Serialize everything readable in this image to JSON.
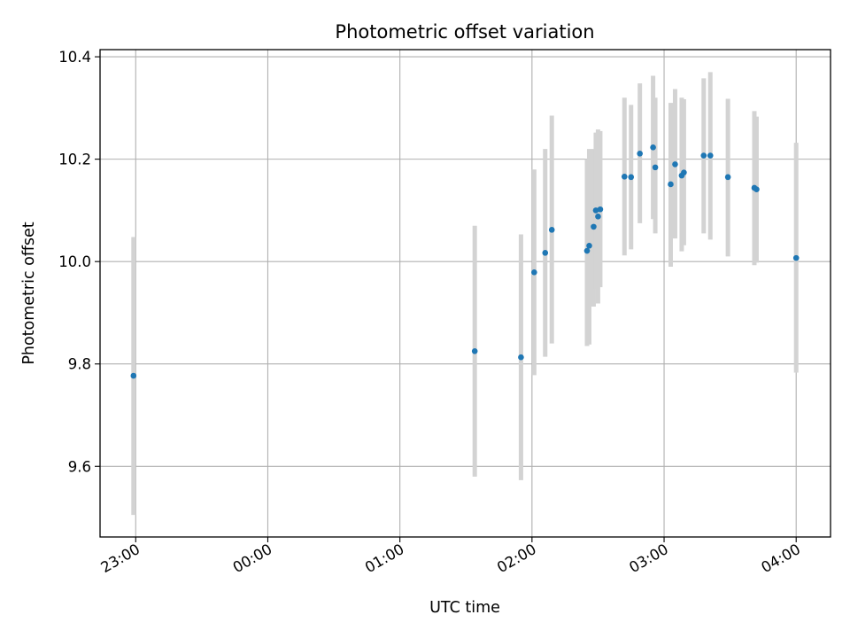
{
  "chart_data": {
    "type": "scatter",
    "title": "Photometric offset variation",
    "xlabel": "UTC time",
    "ylabel": "Photometric offset",
    "x_tick_labels": [
      "23:00",
      "00:00",
      "01:00",
      "02:00",
      "03:00",
      "04:00"
    ],
    "x_ticks_hours": [
      -1,
      0,
      1,
      2,
      3,
      4
    ],
    "x_range_hours": [
      -1.27,
      4.26
    ],
    "y_ticks": [
      9.6,
      9.8,
      10.0,
      10.2,
      10.4
    ],
    "y_tick_labels": [
      "9.6",
      "9.8",
      "10.0",
      "10.2",
      "10.4"
    ],
    "ylim": [
      9.462,
      10.414
    ],
    "grid": true,
    "point_color": "#1f77b4",
    "errorbar_color": "#d3d3d3",
    "points": [
      {
        "t": "22:59",
        "y": 9.777,
        "lo": 9.505,
        "hi": 10.048
      },
      {
        "t": "01:34",
        "y": 9.825,
        "lo": 9.58,
        "hi": 10.07
      },
      {
        "t": "01:55",
        "y": 9.813,
        "lo": 9.573,
        "hi": 10.053
      },
      {
        "t": "02:01",
        "y": 9.979,
        "lo": 9.778,
        "hi": 10.18
      },
      {
        "t": "02:06",
        "y": 10.017,
        "lo": 9.814,
        "hi": 10.22
      },
      {
        "t": "02:09",
        "y": 10.062,
        "lo": 9.84,
        "hi": 10.285
      },
      {
        "t": "02:25",
        "y": 10.021,
        "lo": 9.835,
        "hi": 10.2
      },
      {
        "t": "02:26",
        "y": 10.031,
        "lo": 9.838,
        "hi": 10.22
      },
      {
        "t": "02:28",
        "y": 10.068,
        "lo": 9.912,
        "hi": 10.22
      },
      {
        "t": "02:29",
        "y": 10.1,
        "lo": 9.946,
        "hi": 10.252
      },
      {
        "t": "02:30",
        "y": 10.088,
        "lo": 9.918,
        "hi": 10.258
      },
      {
        "t": "02:31",
        "y": 10.102,
        "lo": 9.95,
        "hi": 10.255
      },
      {
        "t": "02:42",
        "y": 10.166,
        "lo": 10.012,
        "hi": 10.32
      },
      {
        "t": "02:45",
        "y": 10.165,
        "lo": 10.024,
        "hi": 10.306
      },
      {
        "t": "02:49",
        "y": 10.211,
        "lo": 10.075,
        "hi": 10.348
      },
      {
        "t": "02:55",
        "y": 10.223,
        "lo": 10.083,
        "hi": 10.363
      },
      {
        "t": "02:56",
        "y": 10.184,
        "lo": 10.055,
        "hi": 10.32
      },
      {
        "t": "03:03",
        "y": 10.151,
        "lo": 9.99,
        "hi": 10.31
      },
      {
        "t": "03:05",
        "y": 10.19,
        "lo": 10.045,
        "hi": 10.337
      },
      {
        "t": "03:08",
        "y": 10.168,
        "lo": 10.02,
        "hi": 10.32
      },
      {
        "t": "03:09",
        "y": 10.174,
        "lo": 10.032,
        "hi": 10.317
      },
      {
        "t": "03:18",
        "y": 10.207,
        "lo": 10.055,
        "hi": 10.358
      },
      {
        "t": "03:21",
        "y": 10.207,
        "lo": 10.043,
        "hi": 10.37
      },
      {
        "t": "03:29",
        "y": 10.165,
        "lo": 10.01,
        "hi": 10.318
      },
      {
        "t": "03:41",
        "y": 10.144,
        "lo": 9.993,
        "hi": 10.294
      },
      {
        "t": "03:42",
        "y": 10.141,
        "lo": 9.998,
        "hi": 10.283
      },
      {
        "t": "04:00",
        "y": 10.007,
        "lo": 9.783,
        "hi": 10.232
      }
    ]
  }
}
